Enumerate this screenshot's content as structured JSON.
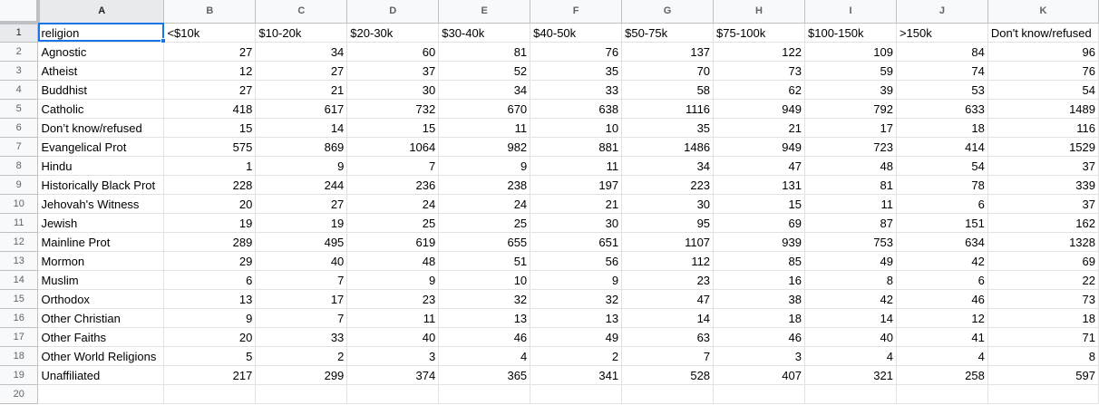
{
  "column_letters": [
    "A",
    "B",
    "C",
    "D",
    "E",
    "F",
    "G",
    "H",
    "I",
    "J",
    "K"
  ],
  "row_numbers": [
    "1",
    "2",
    "3",
    "4",
    "5",
    "6",
    "7",
    "8",
    "9",
    "10",
    "11",
    "12",
    "13",
    "14",
    "15",
    "16",
    "17",
    "18",
    "19",
    "20"
  ],
  "selected_cell": {
    "row": 1,
    "col": "A"
  },
  "colors": {
    "selection": "#1a73e8",
    "header_bg": "#f8f9fa",
    "gridline": "#e2e2e2"
  },
  "rows": [
    [
      "religion",
      "<$10k",
      "$10-20k",
      "$20-30k",
      "$30-40k",
      "$40-50k",
      "$50-75k",
      "$75-100k",
      "$100-150k",
      ">150k",
      "Don't know/refused"
    ],
    [
      "Agnostic",
      "27",
      "34",
      "60",
      "81",
      "76",
      "137",
      "122",
      "109",
      "84",
      "96"
    ],
    [
      "Atheist",
      "12",
      "27",
      "37",
      "52",
      "35",
      "70",
      "73",
      "59",
      "74",
      "76"
    ],
    [
      "Buddhist",
      "27",
      "21",
      "30",
      "34",
      "33",
      "58",
      "62",
      "39",
      "53",
      "54"
    ],
    [
      "Catholic",
      "418",
      "617",
      "732",
      "670",
      "638",
      "1116",
      "949",
      "792",
      "633",
      "1489"
    ],
    [
      "Don’t know/refused",
      "15",
      "14",
      "15",
      "11",
      "10",
      "35",
      "21",
      "17",
      "18",
      "116"
    ],
    [
      "Evangelical Prot",
      "575",
      "869",
      "1064",
      "982",
      "881",
      "1486",
      "949",
      "723",
      "414",
      "1529"
    ],
    [
      "Hindu",
      "1",
      "9",
      "7",
      "9",
      "11",
      "34",
      "47",
      "48",
      "54",
      "37"
    ],
    [
      "Historically Black Prot",
      "228",
      "244",
      "236",
      "238",
      "197",
      "223",
      "131",
      "81",
      "78",
      "339"
    ],
    [
      "Jehovah's Witness",
      "20",
      "27",
      "24",
      "24",
      "21",
      "30",
      "15",
      "11",
      "6",
      "37"
    ],
    [
      "Jewish",
      "19",
      "19",
      "25",
      "25",
      "30",
      "95",
      "69",
      "87",
      "151",
      "162"
    ],
    [
      "Mainline Prot",
      "289",
      "495",
      "619",
      "655",
      "651",
      "1107",
      "939",
      "753",
      "634",
      "1328"
    ],
    [
      "Mormon",
      "29",
      "40",
      "48",
      "51",
      "56",
      "112",
      "85",
      "49",
      "42",
      "69"
    ],
    [
      "Muslim",
      "6",
      "7",
      "9",
      "10",
      "9",
      "23",
      "16",
      "8",
      "6",
      "22"
    ],
    [
      "Orthodox",
      "13",
      "17",
      "23",
      "32",
      "32",
      "47",
      "38",
      "42",
      "46",
      "73"
    ],
    [
      "Other Christian",
      "9",
      "7",
      "11",
      "13",
      "13",
      "14",
      "18",
      "14",
      "12",
      "18"
    ],
    [
      "Other Faiths",
      "20",
      "33",
      "40",
      "46",
      "49",
      "63",
      "46",
      "40",
      "41",
      "71"
    ],
    [
      "Other World Religions",
      "5",
      "2",
      "3",
      "4",
      "2",
      "7",
      "3",
      "4",
      "4",
      "8"
    ],
    [
      "Unaffiliated",
      "217",
      "299",
      "374",
      "365",
      "341",
      "528",
      "407",
      "321",
      "258",
      "597"
    ],
    [
      "",
      "",
      "",
      "",
      "",
      "",
      "",
      "",
      "",
      "",
      ""
    ]
  ]
}
